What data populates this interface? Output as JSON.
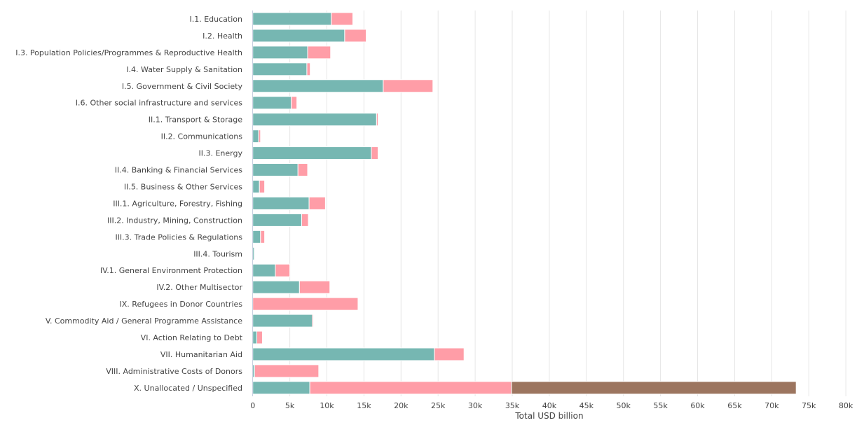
{
  "chart_data": {
    "type": "bar",
    "orientation": "horizontal",
    "stacked": true,
    "xlabel": "Total USD billion",
    "xlim": [
      0,
      80000
    ],
    "grid": true,
    "x_ticks": [
      "0",
      "5k",
      "10k",
      "15k",
      "20k",
      "25k",
      "30k",
      "35k",
      "40k",
      "45k",
      "50k",
      "55k",
      "60k",
      "65k",
      "70k",
      "75k",
      "80k"
    ],
    "categories": [
      "I.1. Education",
      "I.2. Health",
      "I.3. Population Policies/Programmes & Reproductive Health",
      "I.4. Water Supply & Sanitation",
      "I.5. Government & Civil Society",
      "I.6. Other social infrastructure and services",
      "II.1. Transport & Storage",
      "II.2. Communications",
      "II.3. Energy",
      "II.4. Banking & Financial Services",
      "II.5. Business & Other Services",
      "III.1. Agriculture, Forestry, Fishing",
      "III.2. Industry, Mining, Construction",
      "III.3. Trade Policies & Regulations",
      "III.4. Tourism",
      "IV.1. General Environment Protection",
      "IV.2. Other Multisector",
      "IX. Refugees in Donor Countries",
      "V. Commodity Aid / General Programme Assistance",
      "VI. Action Relating to Debt",
      "VII. Humanitarian Aid",
      "VIII. Administrative Costs of Donors",
      "X. Unallocated / Unspecified"
    ],
    "series": [
      {
        "color": "#76b7b2",
        "values": [
          10600,
          12400,
          7400,
          7300,
          17600,
          5200,
          16700,
          800,
          16000,
          6100,
          900,
          7600,
          6600,
          1050,
          200,
          3050,
          6300,
          0,
          8050,
          550,
          24500,
          250,
          7700
        ]
      },
      {
        "color": "#ff9da7",
        "values": [
          2900,
          2900,
          3100,
          450,
          6700,
          750,
          200,
          250,
          900,
          1300,
          700,
          2200,
          900,
          550,
          0,
          1950,
          4100,
          14200,
          150,
          750,
          4000,
          8650,
          27200
        ]
      },
      {
        "color": "#9c755f",
        "values": [
          0,
          0,
          0,
          0,
          0,
          0,
          0,
          0,
          0,
          0,
          0,
          0,
          0,
          0,
          0,
          0,
          0,
          0,
          0,
          0,
          0,
          0,
          38400
        ]
      }
    ]
  }
}
